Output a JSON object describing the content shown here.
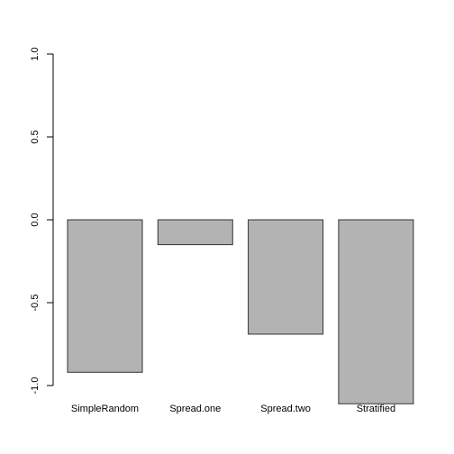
{
  "chart_data": {
    "type": "bar",
    "categories": [
      "SimpleRandom",
      "Spread.one",
      "Spread.two",
      "Stratified"
    ],
    "values": [
      -0.92,
      -0.15,
      -0.69,
      -1.11
    ],
    "ylim": [
      -1.0,
      1.0
    ],
    "yticks": [
      -1.0,
      -0.5,
      0.0,
      0.5,
      1.0
    ],
    "ytick_labels": [
      "-1.0",
      "-0.5",
      "0.0",
      "0.5",
      "1.0"
    ],
    "grid": false,
    "bar_color": "#b3b3b3",
    "bar_edge_color": "#333333"
  }
}
